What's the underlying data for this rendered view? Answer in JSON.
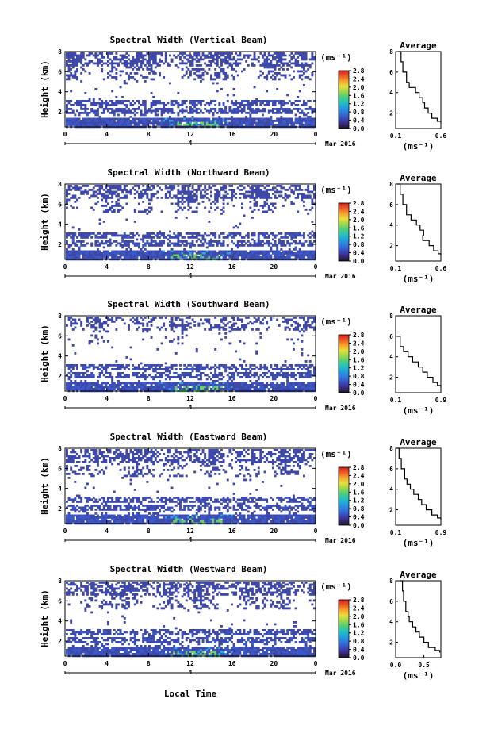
{
  "colors": {
    "scale": [
      "#1a1a1a",
      "#3b2a8a",
      "#3a4fc0",
      "#2f78e0",
      "#1ea0e0",
      "#22c4c0",
      "#4ccf7a",
      "#9ad84a",
      "#e8e03a",
      "#f7a52a",
      "#ee5a22",
      "#d42020"
    ],
    "data_main": "#3e48a8",
    "data_low": "#3a58c8",
    "data_mid": "#2aa8e0",
    "data_high": "#6ad060"
  },
  "x_axis_title": "Local Time",
  "month_label": "Mar 2016",
  "day_label": "4",
  "x_ticks": [
    "0",
    "4",
    "8",
    "12",
    "16",
    "20",
    "0"
  ],
  "y_ticks": [
    "2",
    "4",
    "6",
    "8"
  ],
  "y_label": "Height (km)",
  "colorbar_unit": "(ms⁻¹)",
  "colorbar_ticks": [
    "0.0",
    "0.4",
    "0.8",
    "1.2",
    "1.6",
    "2.0",
    "2.4",
    "2.8"
  ],
  "avg_title": "Average",
  "avg_unit": "(ms⁻¹)",
  "chart_data": [
    {
      "type": "heatmap",
      "title": "Spectral Width (Vertical Beam)",
      "xlabel": "",
      "ylabel": "Height (km)",
      "xlim": [
        0,
        24
      ],
      "ylim": [
        0.5,
        8
      ],
      "clim": [
        0,
        2.8
      ],
      "avg_profile": {
        "title": "Average",
        "xlabel": "(ms⁻¹)",
        "x_ticks": [
          "0.1",
          "0.6"
        ],
        "xlim": [
          0.1,
          0.6
        ],
        "height_km": [
          8,
          7,
          6,
          5,
          4.5,
          4,
          3.5,
          3,
          2.5,
          2,
          1.5,
          1.2,
          1
        ],
        "width": [
          0.13,
          0.16,
          0.18,
          0.22,
          0.25,
          0.32,
          0.36,
          0.4,
          0.42,
          0.46,
          0.5,
          0.56,
          0.6
        ]
      }
    },
    {
      "type": "heatmap",
      "title": "Spectral Width (Northward Beam)",
      "xlabel": "",
      "ylabel": "Height (km)",
      "xlim": [
        0,
        24
      ],
      "ylim": [
        0.5,
        8
      ],
      "clim": [
        0,
        2.8
      ],
      "avg_profile": {
        "title": "Average",
        "xlabel": "(ms⁻¹)",
        "x_ticks": [
          "0.1",
          "0.6"
        ],
        "xlim": [
          0.1,
          0.6
        ],
        "height_km": [
          8,
          7,
          6,
          5,
          4.5,
          4,
          3.5,
          3,
          2.5,
          2,
          1.5,
          1.2,
          1
        ],
        "width": [
          0.12,
          0.15,
          0.18,
          0.22,
          0.27,
          0.33,
          0.37,
          0.41,
          0.4,
          0.47,
          0.52,
          0.57,
          0.6
        ]
      }
    },
    {
      "type": "heatmap",
      "title": "Spectral Width (Southward Beam)",
      "xlabel": "",
      "ylabel": "Height (km)",
      "xlim": [
        0,
        24
      ],
      "ylim": [
        0.5,
        8
      ],
      "clim": [
        0,
        2.8
      ],
      "avg_profile": {
        "title": "Average",
        "xlabel": "(ms⁻¹)",
        "x_ticks": [
          "0.1",
          "0.9"
        ],
        "xlim": [
          0.1,
          0.9
        ],
        "height_km": [
          6,
          5,
          4.5,
          4,
          3.5,
          3,
          2.5,
          2,
          1.5,
          1.2,
          1
        ],
        "width": [
          0.13,
          0.18,
          0.24,
          0.32,
          0.4,
          0.5,
          0.58,
          0.66,
          0.76,
          0.84,
          0.9
        ]
      }
    },
    {
      "type": "heatmap",
      "title": "Spectral Width (Eastward Beam)",
      "xlabel": "",
      "ylabel": "Height (km)",
      "xlim": [
        0,
        24
      ],
      "ylim": [
        0.5,
        8
      ],
      "clim": [
        0,
        2.8
      ],
      "avg_profile": {
        "title": "Average",
        "xlabel": "(ms⁻¹)",
        "x_ticks": [
          "0.1",
          "0.9"
        ],
        "xlim": [
          0.1,
          0.9
        ],
        "height_km": [
          8,
          7,
          6,
          5,
          4.5,
          4,
          3.5,
          3,
          2.5,
          2,
          1.5,
          1.2,
          1
        ],
        "width": [
          0.12,
          0.16,
          0.2,
          0.26,
          0.3,
          0.36,
          0.42,
          0.5,
          0.56,
          0.64,
          0.74,
          0.84,
          0.9
        ]
      }
    },
    {
      "type": "heatmap",
      "title": "Spectral Width (Westward Beam)",
      "xlabel": "Local Time",
      "ylabel": "Height (km)",
      "xlim": [
        0,
        24
      ],
      "ylim": [
        0.5,
        8
      ],
      "clim": [
        0,
        2.8
      ],
      "avg_profile": {
        "title": "Average",
        "xlabel": "(ms⁻¹)",
        "x_ticks": [
          "0.0",
          "0.5"
        ],
        "xlim": [
          0.0,
          0.8
        ],
        "height_km": [
          8,
          7,
          6,
          5,
          4.5,
          4,
          3.5,
          3,
          2.5,
          2,
          1.5,
          1.2,
          1
        ],
        "width": [
          0.08,
          0.12,
          0.14,
          0.18,
          0.22,
          0.24,
          0.3,
          0.36,
          0.42,
          0.5,
          0.58,
          0.7,
          0.78
        ]
      }
    }
  ]
}
